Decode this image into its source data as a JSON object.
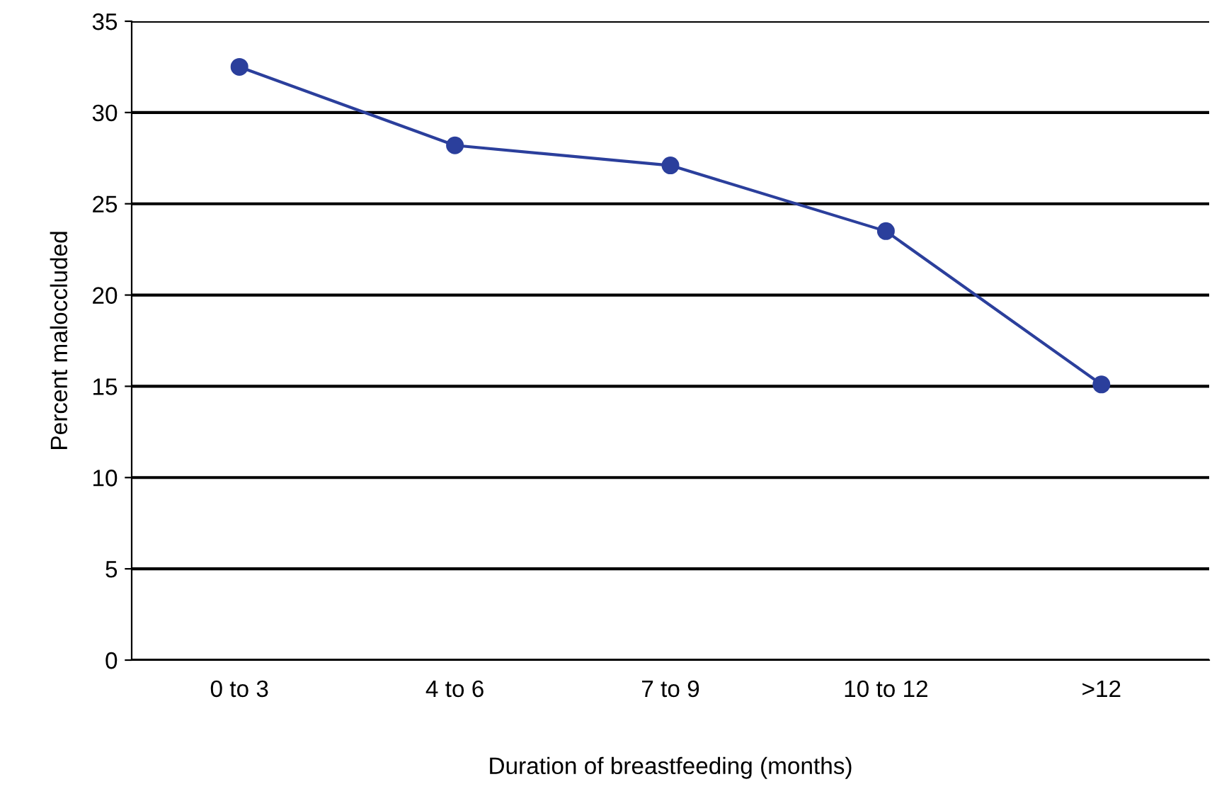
{
  "chart_data": {
    "type": "line",
    "xlabel": "Duration of breastfeeding (months)",
    "ylabel": "Percent maloccluded",
    "categories": [
      "0 to 3",
      "4 to 6",
      "7 to 9",
      "10 to 12",
      ">12"
    ],
    "series": [
      {
        "color": "#2b3f9c",
        "values": [
          32.5,
          28.2,
          27.1,
          23.5,
          15.1
        ]
      }
    ],
    "ylim": [
      0,
      35
    ],
    "yticks": [
      0,
      5,
      10,
      15,
      20,
      25,
      30,
      35
    ],
    "grid": "y",
    "marker": "circle",
    "line_style": "solid",
    "legend": false
  }
}
